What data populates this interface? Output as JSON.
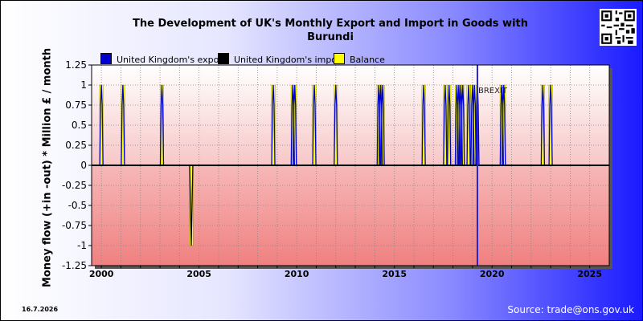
{
  "title_line1": "The Development of UK's Monthly Export and Import in Goods with",
  "title_line2": "Burundi",
  "date_stamp": "16.7.2026",
  "source": "Source: trade@ons.gov.uk",
  "chart_data": {
    "type": "bar",
    "title": "The Development of UK's Monthly Export and Import in Goods with Burundi",
    "ylabel": "Money flow (+in -out) * Million £ / month",
    "xlabel": "",
    "xlim": [
      1999.5,
      2026.0
    ],
    "ylim": [
      -1.25,
      1.25
    ],
    "x_ticks": [
      2000,
      2005,
      2010,
      2015,
      2020,
      2025
    ],
    "y_ticks": [
      1.25,
      1,
      0.75,
      0.5,
      0.25,
      0,
      -0.25,
      -0.5,
      -0.75,
      -1,
      -1.25
    ],
    "grid": true,
    "legend_position": "top",
    "annotation": {
      "text": "BREXIT",
      "x": 2019.25
    },
    "colors": {
      "export": "#0000cc",
      "import": "#000000",
      "balance": "#ffff00",
      "positive_bg_top": "#ffffff",
      "positive_bg_bottom": "#f7c7c7",
      "negative_bg_top": "#f7b8b8",
      "negative_bg_bottom": "#f08080",
      "brexit_line": "#2222dd"
    },
    "series": [
      {
        "name": "United Kingdom's export",
        "points": [
          [
            2000.0,
            1
          ],
          [
            2001.1,
            1
          ],
          [
            2003.1,
            1
          ],
          [
            2008.8,
            1
          ],
          [
            2009.8,
            1
          ],
          [
            2009.9,
            1
          ],
          [
            2010.9,
            1
          ],
          [
            2012.0,
            1
          ],
          [
            2014.2,
            1
          ],
          [
            2014.3,
            1
          ],
          [
            2014.4,
            1
          ],
          [
            2016.5,
            1
          ],
          [
            2017.6,
            1
          ],
          [
            2017.8,
            1
          ],
          [
            2018.2,
            1
          ],
          [
            2018.3,
            1
          ],
          [
            2018.4,
            1
          ],
          [
            2018.5,
            1
          ],
          [
            2018.8,
            1
          ],
          [
            2019.0,
            1
          ],
          [
            2019.1,
            1
          ],
          [
            2019.25,
            1
          ],
          [
            2020.5,
            1
          ],
          [
            2020.6,
            1
          ],
          [
            2022.6,
            1
          ],
          [
            2023.0,
            1
          ]
        ]
      },
      {
        "name": "United Kingdom's import",
        "points": [
          [
            2004.6,
            -1
          ]
        ]
      },
      {
        "name": "Balance",
        "points": [
          [
            2000.0,
            1
          ],
          [
            2001.1,
            1
          ],
          [
            2003.1,
            1
          ],
          [
            2004.6,
            -1
          ],
          [
            2008.8,
            1
          ],
          [
            2009.8,
            1
          ],
          [
            2009.9,
            1
          ],
          [
            2010.9,
            1
          ],
          [
            2012.0,
            1
          ],
          [
            2014.2,
            1
          ],
          [
            2014.3,
            1
          ],
          [
            2014.4,
            1
          ],
          [
            2016.5,
            1
          ],
          [
            2017.6,
            1
          ],
          [
            2017.8,
            1
          ],
          [
            2018.2,
            1
          ],
          [
            2018.3,
            1
          ],
          [
            2018.4,
            1
          ],
          [
            2018.5,
            1
          ],
          [
            2018.8,
            1
          ],
          [
            2019.0,
            1
          ],
          [
            2019.1,
            1
          ],
          [
            2020.5,
            1
          ],
          [
            2020.6,
            1
          ],
          [
            2022.6,
            1
          ],
          [
            2023.0,
            1
          ]
        ]
      }
    ]
  }
}
